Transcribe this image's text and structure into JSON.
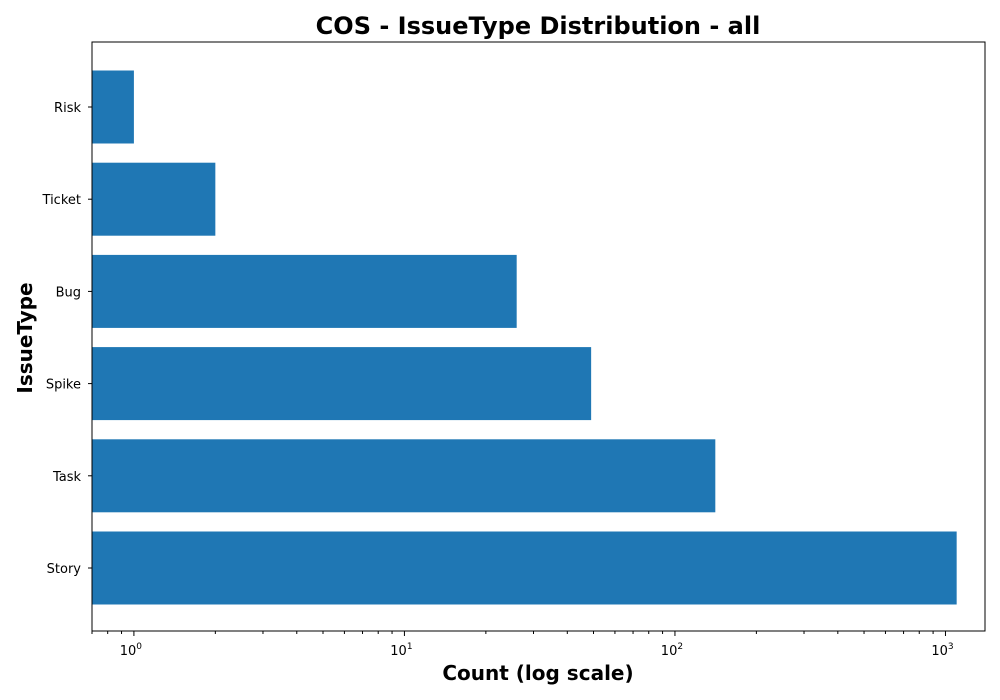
{
  "chart_data": {
    "type": "bar",
    "orientation": "horizontal",
    "title": "COS - IssueType Distribution - all",
    "xlabel": "Count (log scale)",
    "ylabel": "IssueType",
    "xscale": "log",
    "xlim": [
      0.7,
      1400
    ],
    "categories": [
      "Story",
      "Task",
      "Spike",
      "Bug",
      "Ticket",
      "Risk"
    ],
    "series": [
      {
        "values": [
          1100,
          141,
          49,
          26,
          2,
          1
        ],
        "color": "#1f77b4"
      }
    ],
    "xticks": [
      {
        "base": "10",
        "exp": "0",
        "value": 1
      },
      {
        "base": "10",
        "exp": "1",
        "value": 10
      },
      {
        "base": "10",
        "exp": "2",
        "value": 100
      },
      {
        "base": "10",
        "exp": "3",
        "value": 1000
      }
    ],
    "grid": false,
    "legend": "none"
  }
}
